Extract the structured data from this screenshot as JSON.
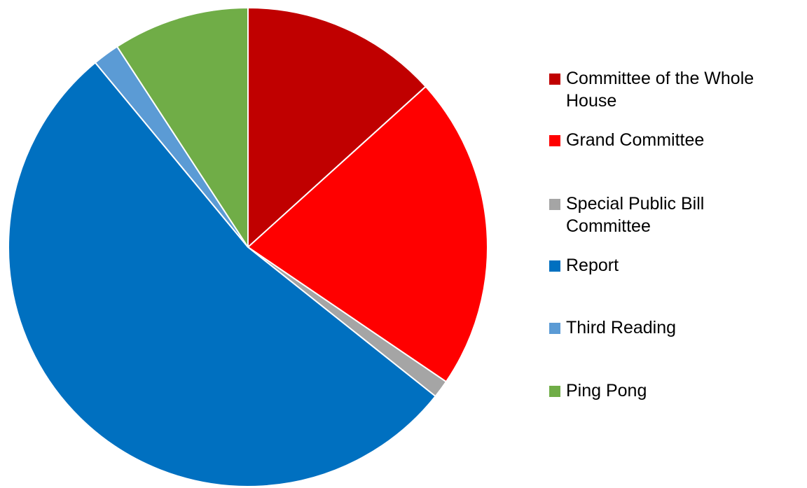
{
  "chart_data": {
    "type": "pie",
    "start_angle_deg": 0,
    "direction": "clockwise",
    "legend_position": "right",
    "slices": [
      {
        "label": "Committee of the Whole\nHouse",
        "value": 13.3,
        "color": "#C00000"
      },
      {
        "label": "Grand Committee",
        "value": 21.2,
        "color": "#FF0000"
      },
      {
        "label": "Special Public Bill\nCommittee",
        "value": 1.2,
        "color": "#A5A5A5"
      },
      {
        "label": "Report",
        "value": 53.3,
        "color": "#0070C0"
      },
      {
        "label": "Third Reading",
        "value": 1.8,
        "color": "#5B9BD5"
      },
      {
        "label": "Ping Pong",
        "value": 9.2,
        "color": "#70AD47"
      }
    ]
  }
}
